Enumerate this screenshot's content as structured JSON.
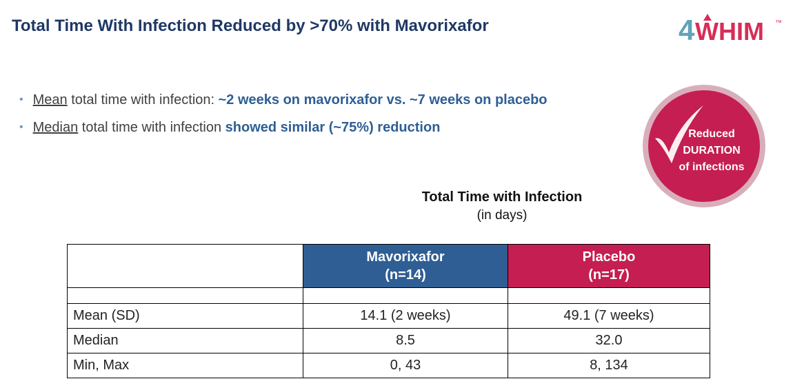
{
  "title": "Total Time With Infection Reduced by >70% with Mavorixafor",
  "logo": {
    "text": "4WHIM",
    "trademark": "™"
  },
  "bullets": [
    {
      "underlined": "Mean",
      "plain": " total time with infection: ",
      "highlight": "~2 weeks on mavorixafor vs. ~7 weeks on placebo"
    },
    {
      "underlined": "Median",
      "plain": " total time with infection ",
      "highlight": "showed similar (~75%) reduction"
    }
  ],
  "badge": {
    "line1": "Reduced",
    "line2": "DURATION",
    "line3": "of infections"
  },
  "table": {
    "title": "Total Time with Infection",
    "subtitle": "(in days)",
    "headers": [
      {
        "name": "Mavorixafor",
        "n": "(n=14)"
      },
      {
        "name": "Placebo",
        "n": "(n=17)"
      }
    ],
    "rows": [
      {
        "label": "Mean (SD)",
        "mavorixafor": "14.1 (2 weeks)",
        "placebo": "49.1 (7 weeks)"
      },
      {
        "label": "Median",
        "mavorixafor": "8.5",
        "placebo": "32.0"
      },
      {
        "label": "Min, Max",
        "mavorixafor": "0, 43",
        "placebo": "8, 134"
      }
    ]
  },
  "colors": {
    "title": "#1f3864",
    "mavorixafor": "#2e5e94",
    "placebo": "#c41e52",
    "logo_accent": "#d62e57",
    "logo_teal": "#5fa3b8"
  }
}
